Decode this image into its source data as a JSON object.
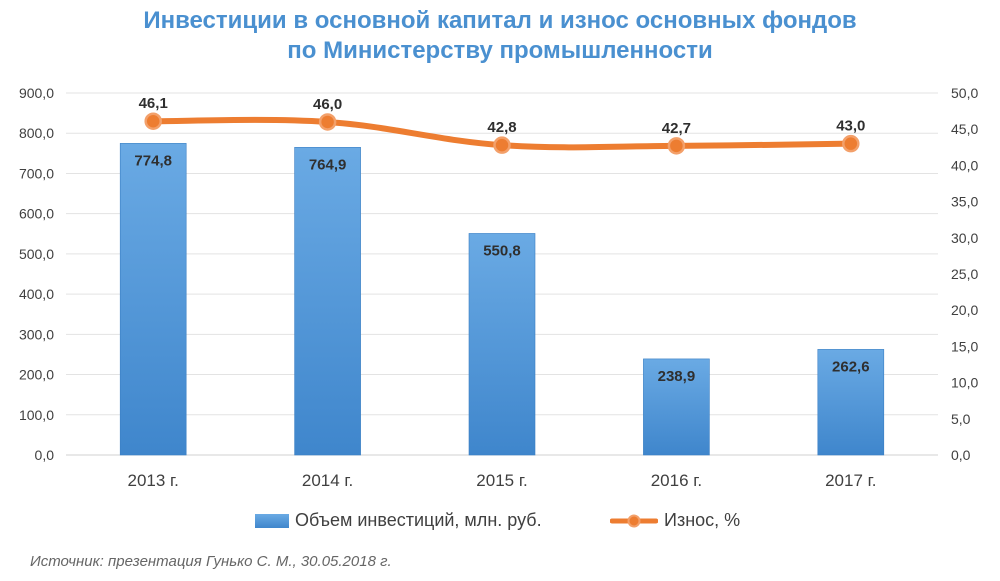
{
  "title_lines": [
    "Инвестиции в основной капитал и износ основных фондов",
    "по Министерству промышленности"
  ],
  "source": "Источник: презентация Гунько С. М., 30.05.2018 г.",
  "colors": {
    "bar": "#4a90d6",
    "line": "#ed7d31",
    "title": "#4a90d0"
  },
  "chart_data": {
    "type": "bar+line",
    "categories": [
      "2013 г.",
      "2014 г.",
      "2015 г.",
      "2016 г.",
      "2017 г."
    ],
    "series": [
      {
        "name": "Объем инвестиций, млн. руб.",
        "type": "bar",
        "axis": "left",
        "values": [
          774.8,
          764.9,
          550.8,
          238.9,
          262.6
        ],
        "labels": [
          "774,8",
          "764,9",
          "550,8",
          "238,9",
          "262,6"
        ]
      },
      {
        "name": "Износ, %",
        "type": "line",
        "axis": "right",
        "values": [
          46.1,
          46.0,
          42.8,
          42.7,
          43.0
        ],
        "labels": [
          "46,1",
          "46,0",
          "42,8",
          "42,7",
          "43,0"
        ]
      }
    ],
    "y_left": {
      "min": 0,
      "max": 900,
      "ticks": [
        "0,0",
        "100,0",
        "200,0",
        "300,0",
        "400,0",
        "500,0",
        "600,0",
        "700,0",
        "800,0",
        "900,0"
      ]
    },
    "y_right": {
      "min": 0,
      "max": 50,
      "ticks": [
        "0,0",
        "5,0",
        "10,0",
        "15,0",
        "20,0",
        "25,0",
        "30,0",
        "35,0",
        "40,0",
        "45,0",
        "50,0"
      ]
    },
    "grid": true,
    "legend": "bottom"
  }
}
